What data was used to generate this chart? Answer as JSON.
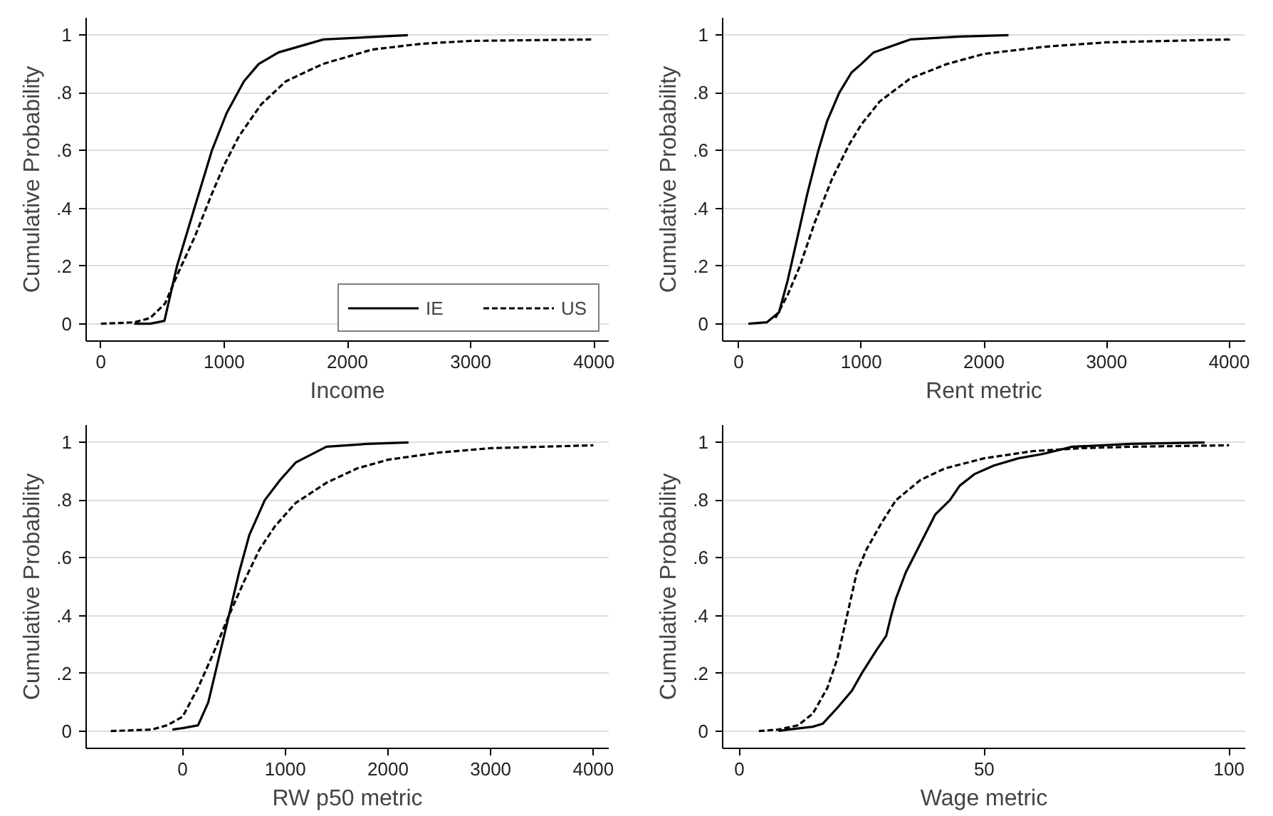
{
  "chart_data": [
    {
      "type": "line",
      "xlabel": "Income",
      "ylabel": "Cumulative Probability",
      "xlim": [
        -120,
        4120
      ],
      "ylim": [
        -0.06,
        1.06
      ],
      "xticks": [
        0,
        1000,
        2000,
        3000,
        4000
      ],
      "yticks": [
        0,
        {
          "value": 0.2,
          "label": ".2"
        },
        {
          "value": 0.4,
          "label": ".4"
        },
        {
          "value": 0.6,
          "label": ".6"
        },
        {
          "value": 0.8,
          "label": ".8"
        },
        1
      ],
      "grid": "y",
      "legend": "bottom right",
      "series": [
        {
          "name": "IE",
          "color": "#000000",
          "line_style": "solid",
          "x": [
            270,
            400,
            515,
            617,
            758,
            900,
            1020,
            1160,
            1280,
            1440,
            1806,
            2490
          ],
          "values": [
            0,
            0,
            0.01,
            0.2,
            0.4,
            0.6,
            0.73,
            0.84,
            0.9,
            0.94,
            0.985,
            1
          ]
        },
        {
          "name": "US",
          "color": "#000000",
          "line_style": "dashed",
          "x": [
            0,
            270,
            400,
            520,
            620,
            760,
            900,
            1000,
            1120,
            1300,
            1500,
            1800,
            2200,
            2600,
            3000,
            4000
          ],
          "values": [
            0,
            0.005,
            0.02,
            0.07,
            0.17,
            0.3,
            0.45,
            0.55,
            0.65,
            0.76,
            0.84,
            0.9,
            0.95,
            0.97,
            0.98,
            0.985
          ]
        }
      ]
    },
    {
      "type": "line",
      "xlabel": "Rent metric",
      "ylabel": "Cumulative Probability",
      "xlim": [
        -130,
        4130
      ],
      "ylim": [
        -0.06,
        1.06
      ],
      "xticks": [
        0,
        1000,
        2000,
        3000,
        4000
      ],
      "yticks": [
        0,
        {
          "value": 0.2,
          "label": ".2"
        },
        {
          "value": 0.4,
          "label": ".4"
        },
        {
          "value": 0.6,
          "label": ".6"
        },
        {
          "value": 0.8,
          "label": ".8"
        },
        1
      ],
      "grid": "y",
      "series": [
        {
          "color": "#000000",
          "line_style": "solid",
          "x": [
            80,
            230,
            330,
            400,
            480,
            560,
            650,
            720,
            820,
            920,
            1000,
            1100,
            1400,
            1800,
            2200
          ],
          "values": [
            0,
            0.005,
            0.04,
            0.15,
            0.3,
            0.45,
            0.6,
            0.7,
            0.8,
            0.87,
            0.9,
            0.94,
            0.985,
            0.995,
            1
          ]
        },
        {
          "color": "#000000",
          "line_style": "dashed",
          "x": [
            300,
            400,
            500,
            620,
            760,
            900,
            1000,
            1150,
            1400,
            1700,
            2000,
            2500,
            3000,
            4000,
            4000
          ],
          "values": [
            0.02,
            0.1,
            0.2,
            0.35,
            0.5,
            0.62,
            0.69,
            0.77,
            0.85,
            0.9,
            0.935,
            0.96,
            0.975,
            0.985,
            0.99
          ]
        }
      ]
    },
    {
      "type": "line",
      "xlabel": "RW p50 metric",
      "ylabel": "Cumulative Probability",
      "xlim": [
        -940,
        4150
      ],
      "ylim": [
        -0.06,
        1.06
      ],
      "xticks": [
        0,
        1000,
        2000,
        3000,
        4000
      ],
      "yticks": [
        0,
        {
          "value": 0.2,
          "label": ".2"
        },
        {
          "value": 0.4,
          "label": ".4"
        },
        {
          "value": 0.6,
          "label": ".6"
        },
        {
          "value": 0.8,
          "label": ".8"
        },
        1
      ],
      "grid": "y",
      "series": [
        {
          "color": "#000000",
          "line_style": "solid",
          "x": [
            -100,
            0,
            150,
            250,
            350,
            450,
            550,
            650,
            800,
            950,
            1100,
            1400,
            1800,
            2200
          ],
          "values": [
            0.005,
            0.01,
            0.02,
            0.1,
            0.25,
            0.4,
            0.55,
            0.68,
            0.8,
            0.87,
            0.93,
            0.985,
            0.995,
            1
          ]
        },
        {
          "color": "#000000",
          "line_style": "dashed",
          "x": [
            -700,
            -300,
            -150,
            0,
            150,
            300,
            450,
            600,
            750,
            900,
            1100,
            1400,
            1700,
            2000,
            2500,
            3000,
            4000
          ],
          "values": [
            0,
            0.005,
            0.02,
            0.05,
            0.15,
            0.27,
            0.4,
            0.52,
            0.63,
            0.71,
            0.79,
            0.86,
            0.91,
            0.94,
            0.965,
            0.98,
            0.99
          ]
        }
      ]
    },
    {
      "type": "line",
      "xlabel": "Wage metric",
      "ylabel": "Cumulative Probability",
      "xlim": [
        -3.4,
        103.3
      ],
      "ylim": [
        -0.06,
        1.06
      ],
      "xticks": [
        0,
        50,
        100
      ],
      "yticks": [
        0,
        {
          "value": 0.2,
          "label": ".2"
        },
        {
          "value": 0.4,
          "label": ".4"
        },
        {
          "value": 0.6,
          "label": ".6"
        },
        {
          "value": 0.8,
          "label": ".8"
        },
        1
      ],
      "grid": "y",
      "series": [
        {
          "color": "#000000",
          "line_style": "solid",
          "x": [
            8,
            10,
            15,
            17,
            20,
            23,
            25,
            28,
            30,
            31,
            32,
            34,
            37,
            40,
            43,
            45,
            48,
            52,
            57,
            62,
            68,
            80,
            95
          ],
          "values": [
            0,
            0.005,
            0.015,
            0.025,
            0.08,
            0.14,
            0.2,
            0.28,
            0.33,
            0.4,
            0.46,
            0.55,
            0.65,
            0.75,
            0.8,
            0.85,
            0.89,
            0.92,
            0.945,
            0.96,
            0.985,
            0.995,
            1
          ]
        },
        {
          "color": "#000000",
          "line_style": "dashed",
          "x": [
            4,
            8,
            12,
            15,
            18,
            20,
            22,
            24,
            26,
            29,
            32,
            37,
            42,
            50,
            60,
            70,
            80,
            100
          ],
          "values": [
            0,
            0.005,
            0.02,
            0.06,
            0.15,
            0.25,
            0.4,
            0.55,
            0.63,
            0.72,
            0.8,
            0.87,
            0.91,
            0.945,
            0.97,
            0.98,
            0.985,
            0.99
          ]
        }
      ]
    }
  ]
}
